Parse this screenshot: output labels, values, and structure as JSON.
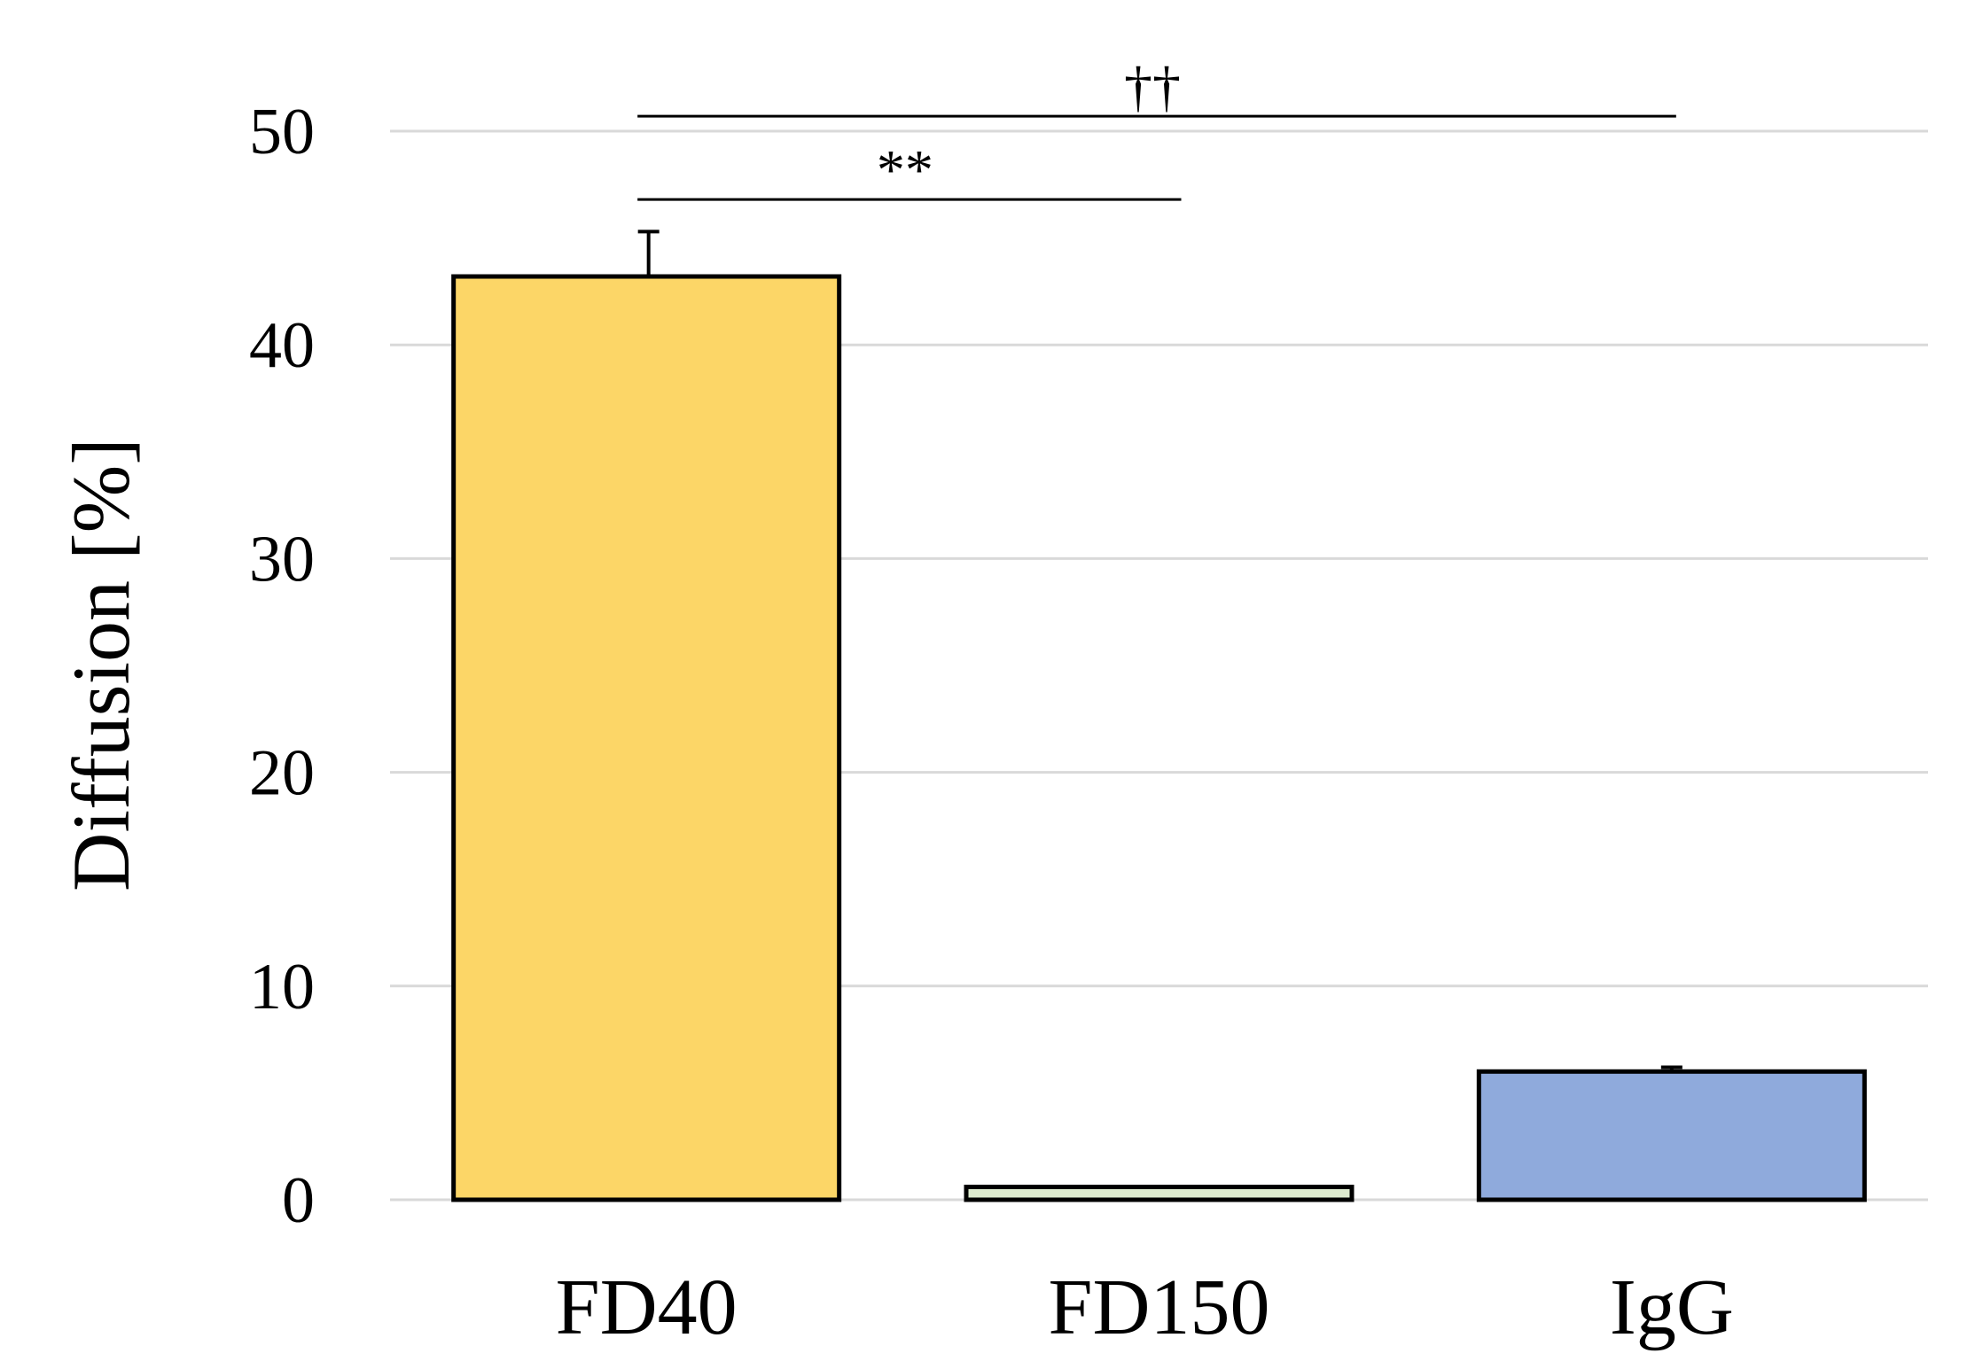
{
  "chart_data": {
    "type": "bar",
    "title": "",
    "xlabel": "",
    "ylabel": "Diffusion [%]",
    "ylim": [
      0,
      50
    ],
    "yticks": [
      0,
      10,
      20,
      30,
      40,
      50
    ],
    "grid": true,
    "categories": [
      "FD40",
      "FD150",
      "IgG"
    ],
    "values": [
      43.2,
      0.6,
      6.0
    ],
    "errors": [
      2.1,
      0.0,
      0.2
    ],
    "colors": [
      "#FCD667",
      "#DDEBCF",
      "#8FAADC"
    ],
    "significance": [
      {
        "from": 0,
        "to": 1,
        "label": "**",
        "y": 46.8
      },
      {
        "from": 0,
        "to": 2,
        "label": "††",
        "y": 50.7
      }
    ]
  }
}
